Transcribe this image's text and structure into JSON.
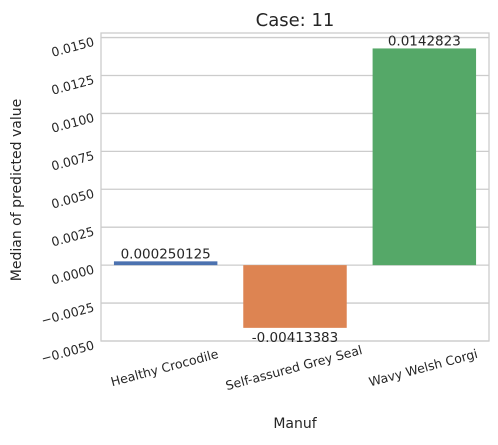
{
  "chart_data": {
    "type": "bar",
    "title": "Case: 11",
    "xlabel": "Manuf",
    "ylabel": "Median of predicted value",
    "categories": [
      "Healthy Crocodile",
      "Self-assured Grey Seal",
      "Wavy Welsh Corgi"
    ],
    "values": [
      0.000250125,
      -0.00413383,
      0.0142823
    ],
    "value_labels": [
      "0.000250125",
      "-0.00413383",
      "0.0142823"
    ],
    "colors": [
      "#4c72b0",
      "#dd8452",
      "#55a868"
    ],
    "ylim": [
      -0.005,
      0.0153
    ],
    "yticks": [
      -0.005,
      -0.0025,
      0.0,
      0.0025,
      0.005,
      0.0075,
      0.01,
      0.0125,
      0.015
    ],
    "ytick_labels": [
      "−0.0050",
      "−0.0025",
      "0.0000",
      "0.0025",
      "0.0050",
      "0.0075",
      "0.0100",
      "0.0125",
      "0.0150"
    ],
    "grid": true,
    "legend": "none"
  }
}
